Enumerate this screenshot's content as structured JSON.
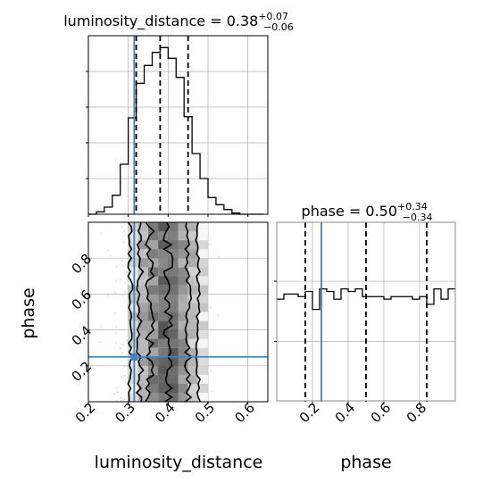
{
  "chart_data": {
    "type": "corner",
    "parameters": [
      "luminosity_distance",
      "phase"
    ],
    "titles": {
      "luminosity_distance": {
        "name": "luminosity_distance",
        "median": "0.38",
        "plus": "+0.07",
        "minus": "−0.06"
      },
      "phase": {
        "name": "phase",
        "median": "0.50",
        "plus": "+0.34",
        "minus": "−0.34"
      }
    },
    "axis_labels": {
      "x_left": "luminosity_distance",
      "x_right": "phase",
      "y_scatter": "phase"
    },
    "ranges": {
      "luminosity_distance": [
        0.2,
        0.65
      ],
      "phase": [
        0.0,
        1.0
      ]
    },
    "ticks": {
      "luminosity_distance": [
        0.2,
        0.3,
        0.4,
        0.5,
        0.6
      ],
      "phase": [
        0.2,
        0.4,
        0.6,
        0.8
      ],
      "phase_y": [
        0.2,
        0.4,
        0.6,
        0.8
      ]
    },
    "tick_labels": {
      "luminosity_distance": [
        "0.2",
        "0.3",
        "0.4",
        "0.5",
        "0.6"
      ],
      "phase": [
        "0.2",
        "0.4",
        "0.6",
        "0.8"
      ],
      "phase_y": [
        "0.2",
        "0.4",
        "0.6",
        "0.8"
      ]
    },
    "quantiles": {
      "luminosity_distance": [
        0.32,
        0.38,
        0.45
      ],
      "phase": [
        0.16,
        0.5,
        0.84
      ]
    },
    "truth": {
      "luminosity_distance": 0.315,
      "phase": 0.25
    },
    "hist_luminosity_distance": {
      "edges": [
        0.2,
        0.22,
        0.24,
        0.26,
        0.28,
        0.3,
        0.32,
        0.34,
        0.36,
        0.38,
        0.4,
        0.42,
        0.44,
        0.46,
        0.48,
        0.5,
        0.52,
        0.54,
        0.56,
        0.58,
        0.6,
        0.62,
        0.64
      ],
      "counts": [
        0,
        2,
        6,
        16,
        42,
        81,
        110,
        125,
        136,
        140,
        131,
        115,
        82,
        51,
        30,
        14,
        8,
        4,
        1,
        0,
        0,
        0
      ],
      "ymax": 150
    },
    "hist_phase": {
      "edges": [
        0.0,
        0.04,
        0.08,
        0.12,
        0.16,
        0.2,
        0.24,
        0.28,
        0.32,
        0.36,
        0.4,
        0.44,
        0.48,
        0.52,
        0.56,
        0.6,
        0.64,
        0.68,
        0.72,
        0.76,
        0.8,
        0.84,
        0.88,
        0.92,
        0.96,
        1.0
      ],
      "counts": [
        80,
        84,
        84,
        82,
        86,
        72,
        88,
        86,
        80,
        88,
        86,
        88,
        82,
        82,
        82,
        80,
        82,
        82,
        82,
        80,
        82,
        76,
        88,
        80,
        88
      ],
      "ymax": 140
    },
    "grid": true,
    "colors": {
      "truth": "#4682b4",
      "hist": "#000000",
      "grid": "#b0b0b0",
      "axes": "#000000",
      "scatter": "#c8c8c8",
      "density_dark": "#222222"
    }
  }
}
